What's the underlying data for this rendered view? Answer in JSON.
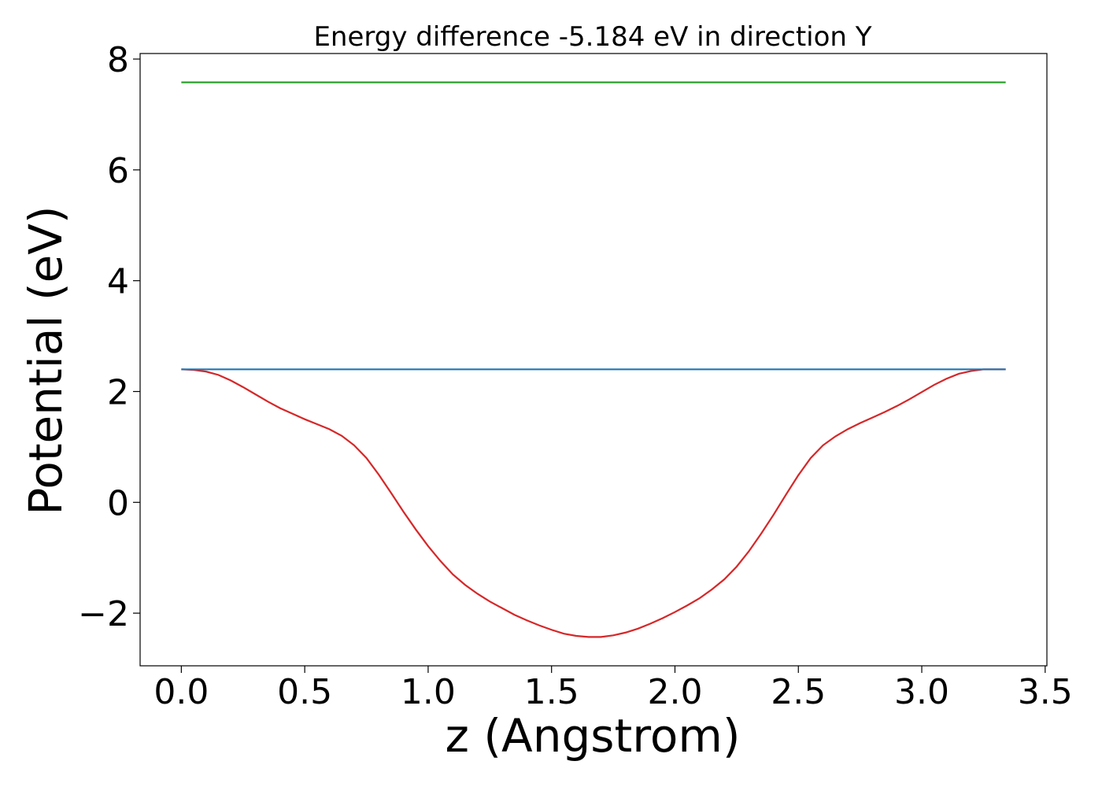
{
  "chart_data": {
    "type": "line",
    "title": "Energy difference -5.184 eV in direction Y",
    "xlabel": "z (Angstrom)",
    "ylabel": "Potential (eV)",
    "xlim": [
      -0.167,
      3.507
    ],
    "ylim": [
      -2.95,
      8.1
    ],
    "xticks": [
      0.0,
      0.5,
      1.0,
      1.5,
      2.0,
      2.5,
      3.0,
      3.5
    ],
    "xtick_labels": [
      "0.0",
      "0.5",
      "1.0",
      "1.5",
      "2.0",
      "2.5",
      "3.0",
      "3.5"
    ],
    "yticks": [
      -2,
      0,
      2,
      4,
      6,
      8
    ],
    "ytick_labels": [
      "−2",
      "0",
      "2",
      "4",
      "6",
      "8"
    ],
    "grid": false,
    "series": [
      {
        "color": "#d62728",
        "x": [
          0.0,
          0.05,
          0.1,
          0.15,
          0.2,
          0.25,
          0.3,
          0.35,
          0.4,
          0.45,
          0.5,
          0.55,
          0.6,
          0.65,
          0.7,
          0.75,
          0.8,
          0.85,
          0.9,
          0.95,
          1.0,
          1.05,
          1.1,
          1.15,
          1.2,
          1.25,
          1.3,
          1.35,
          1.4,
          1.45,
          1.5,
          1.55,
          1.6,
          1.65,
          1.7,
          1.75,
          1.8,
          1.85,
          1.9,
          1.95,
          2.0,
          2.05,
          2.1,
          2.15,
          2.2,
          2.25,
          2.3,
          2.35,
          2.4,
          2.45,
          2.5,
          2.55,
          2.6,
          2.65,
          2.7,
          2.75,
          2.8,
          2.85,
          2.9,
          2.95,
          3.0,
          3.05,
          3.1,
          3.15,
          3.2,
          3.25,
          3.3,
          3.34
        ],
        "y": [
          2.4,
          2.39,
          2.36,
          2.3,
          2.2,
          2.08,
          1.95,
          1.82,
          1.7,
          1.6,
          1.5,
          1.41,
          1.32,
          1.2,
          1.03,
          0.8,
          0.5,
          0.17,
          -0.17,
          -0.49,
          -0.79,
          -1.06,
          -1.3,
          -1.49,
          -1.65,
          -1.79,
          -1.91,
          -2.03,
          -2.13,
          -2.22,
          -2.3,
          -2.37,
          -2.41,
          -2.43,
          -2.43,
          -2.4,
          -2.35,
          -2.28,
          -2.19,
          -2.09,
          -1.98,
          -1.86,
          -1.73,
          -1.57,
          -1.39,
          -1.16,
          -0.88,
          -0.56,
          -0.22,
          0.14,
          0.49,
          0.8,
          1.03,
          1.19,
          1.32,
          1.43,
          1.53,
          1.63,
          1.74,
          1.86,
          1.99,
          2.12,
          2.23,
          2.32,
          2.37,
          2.4,
          2.4,
          2.4
        ]
      },
      {
        "color": "#1f77b4",
        "x": [
          0.0,
          3.34
        ],
        "y": [
          2.4,
          2.4
        ]
      },
      {
        "color": "#2ca02c",
        "x": [
          0.0,
          3.34
        ],
        "y": [
          7.58,
          7.58
        ]
      }
    ]
  }
}
